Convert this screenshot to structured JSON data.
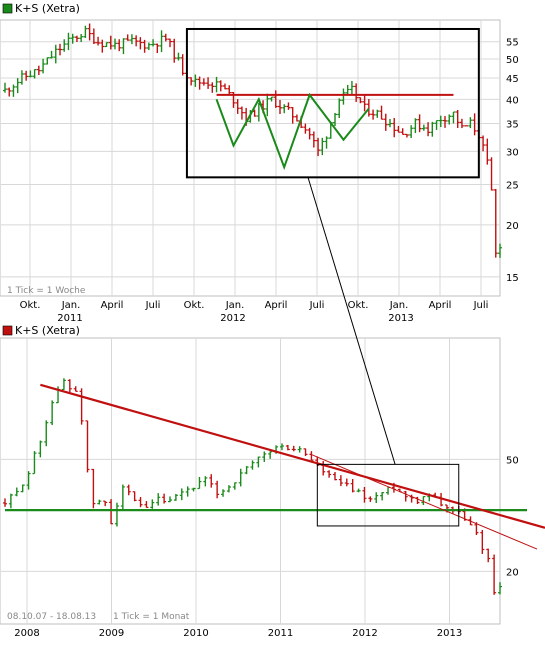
{
  "colors": {
    "up": "#1a8a1a",
    "down": "#c01010",
    "grid": "#d8d8d8",
    "frame": "#bfbfbf",
    "resistance": "#c01010",
    "pattern": "#1a8a1a",
    "box": "#000000"
  },
  "chart_data": [
    {
      "type": "ohlc",
      "title": "K+S (Xetra)",
      "legend_color": "#1a8a1a",
      "note": "1 Tick = 1 Woche",
      "x_labels_upper": [
        "Okt.",
        "Jan.",
        "April",
        "Juli",
        "Okt.",
        "Jan.",
        "April",
        "Juli",
        "Okt.",
        "Jan.",
        "April",
        "Juli"
      ],
      "x_labels_lower": [
        "2011",
        "2012",
        "2013"
      ],
      "y_ticks": [
        15,
        20,
        25,
        30,
        35,
        40,
        45,
        50,
        55
      ],
      "y_scale": "log",
      "ylim": [
        13.5,
        62
      ],
      "grid": true,
      "close_path": [
        [
          0,
          42
        ],
        [
          4,
          45
        ],
        [
          8,
          47
        ],
        [
          12,
          52
        ],
        [
          16,
          56
        ],
        [
          19,
          58
        ],
        [
          22,
          55
        ],
        [
          26,
          54
        ],
        [
          30,
          55
        ],
        [
          34,
          54
        ],
        [
          38,
          56
        ],
        [
          42,
          47
        ],
        [
          45,
          44
        ],
        [
          48,
          44
        ],
        [
          51,
          43
        ],
        [
          54,
          40
        ],
        [
          57,
          36
        ],
        [
          60,
          38
        ],
        [
          63,
          40
        ],
        [
          66,
          38
        ],
        [
          69,
          36
        ],
        [
          72,
          33
        ],
        [
          74,
          30
        ],
        [
          76,
          33
        ],
        [
          79,
          40
        ],
        [
          82,
          42
        ],
        [
          85,
          38
        ],
        [
          88,
          37
        ],
        [
          91,
          35
        ],
        [
          94,
          33
        ],
        [
          97,
          35
        ],
        [
          100,
          34
        ],
        [
          103,
          36
        ],
        [
          106,
          37
        ],
        [
          108,
          34
        ],
        [
          110,
          35
        ],
        [
          112,
          33
        ],
        [
          114,
          28
        ],
        [
          115,
          24
        ],
        [
          116,
          17
        ],
        [
          117,
          18
        ]
      ],
      "annotations": {
        "resistance_level": 41,
        "pattern_points": [
          [
            50,
            40
          ],
          [
            54,
            31
          ],
          [
            60,
            40
          ],
          [
            66,
            27.5
          ],
          [
            72,
            41
          ],
          [
            80,
            32
          ],
          [
            86,
            38
          ]
        ],
        "box": {
          "x_range": [
            43,
            112
          ],
          "y_range": [
            26,
            59
          ]
        }
      }
    },
    {
      "type": "ohlc",
      "title": "K+S (Xetra)",
      "legend_color": "#c01010",
      "note": "1 Tick = 1 Monat",
      "range_label": "08.10.07 - 18.08.13",
      "x_labels": [
        "2008",
        "2009",
        "2010",
        "2011",
        "2012",
        "2013"
      ],
      "y_ticks": [
        20,
        50
      ],
      "y_scale": "log",
      "ylim": [
        13,
        135
      ],
      "grid": true,
      "close_path": [
        [
          0,
          35
        ],
        [
          2,
          38
        ],
        [
          4,
          45
        ],
        [
          6,
          58
        ],
        [
          8,
          80
        ],
        [
          10,
          95
        ],
        [
          11,
          90
        ],
        [
          12,
          88
        ],
        [
          13,
          70
        ],
        [
          14,
          45
        ],
        [
          15,
          35
        ],
        [
          17,
          35
        ],
        [
          18,
          30
        ],
        [
          20,
          40
        ],
        [
          22,
          35
        ],
        [
          24,
          33
        ],
        [
          26,
          36
        ],
        [
          28,
          35
        ],
        [
          30,
          38
        ],
        [
          32,
          40
        ],
        [
          34,
          42
        ],
        [
          36,
          38
        ],
        [
          38,
          40
        ],
        [
          40,
          44
        ],
        [
          42,
          48
        ],
        [
          44,
          52
        ],
        [
          46,
          55
        ],
        [
          48,
          55
        ],
        [
          50,
          54
        ],
        [
          52,
          50
        ],
        [
          54,
          45
        ],
        [
          56,
          42
        ],
        [
          58,
          40
        ],
        [
          60,
          38
        ],
        [
          62,
          36
        ],
        [
          64,
          38
        ],
        [
          66,
          40
        ],
        [
          68,
          37
        ],
        [
          70,
          36
        ],
        [
          72,
          38
        ],
        [
          74,
          35
        ],
        [
          76,
          33
        ],
        [
          78,
          31
        ],
        [
          80,
          27
        ],
        [
          82,
          22
        ],
        [
          83,
          17
        ],
        [
          84,
          18
        ]
      ],
      "annotations": {
        "support_level": 33,
        "long_trendline": [
          [
            6,
            92
          ],
          [
            94,
            30
          ]
        ],
        "short_trendline": [
          [
            52,
            52
          ],
          [
            96,
            24
          ]
        ],
        "box": {
          "x_range": [
            53,
            77
          ],
          "y_range": [
            29,
            48
          ]
        }
      }
    }
  ]
}
